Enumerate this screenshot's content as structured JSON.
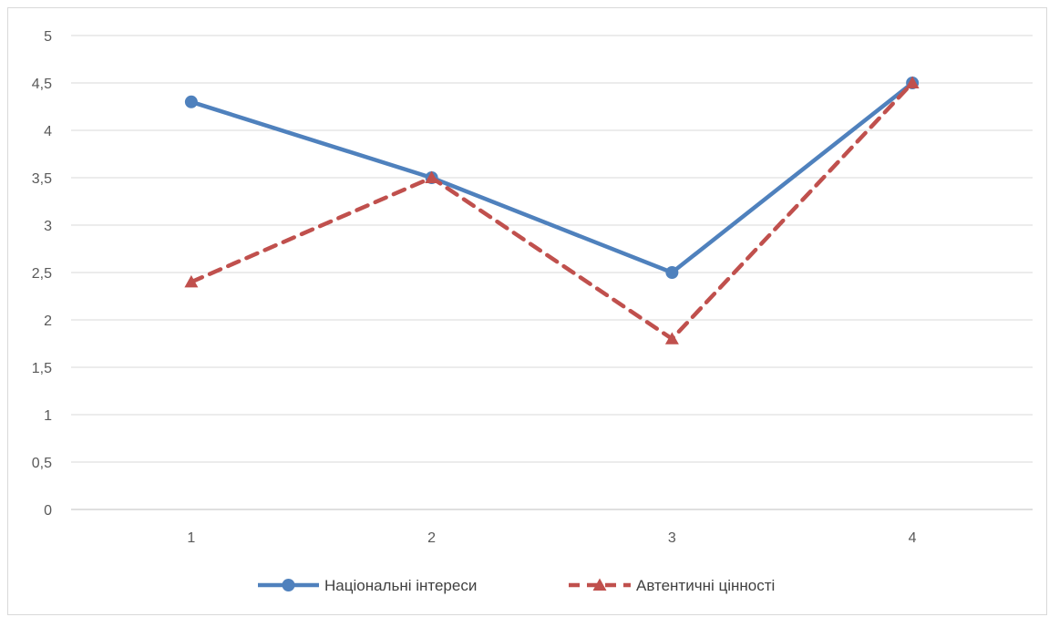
{
  "chart_data": {
    "type": "line",
    "title": "",
    "xlabel": "",
    "ylabel": "",
    "x": [
      "1",
      "2",
      "3",
      "4"
    ],
    "ylim": [
      0,
      5
    ],
    "y_ticks": [
      "0",
      "0,5",
      "1",
      "1,5",
      "2",
      "2,5",
      "3",
      "3,5",
      "4",
      "4,5",
      "5"
    ],
    "y_tick_values": [
      0,
      0.5,
      1,
      1.5,
      2,
      2.5,
      3,
      3.5,
      4,
      4.5,
      5
    ],
    "grid": true,
    "legend_position": "bottom",
    "series": [
      {
        "name": "Національні інтереси",
        "values": [
          4.3,
          3.5,
          2.5,
          4.5
        ],
        "color": "#4f81bd",
        "marker": "circle",
        "line_style": "solid"
      },
      {
        "name": "Автентичні цінності",
        "values": [
          2.4,
          3.5,
          1.8,
          4.5
        ],
        "color": "#c0504d",
        "marker": "triangle",
        "line_style": "dashed"
      }
    ]
  }
}
